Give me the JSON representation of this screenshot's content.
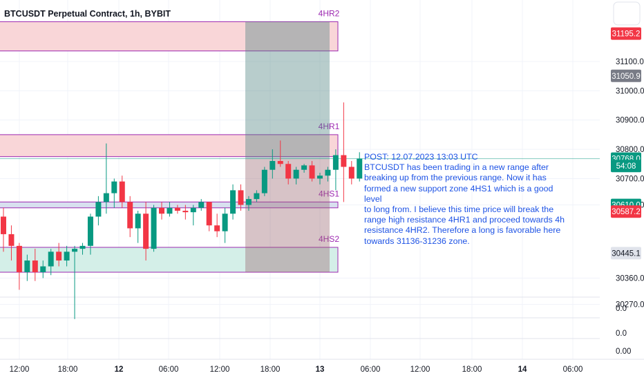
{
  "header": {
    "title": "BTCUSDT Perpetual Contract, 1h, BYBIT"
  },
  "zones": [
    {
      "name": "4HR2",
      "top": 31236,
      "bottom": 31136,
      "fill": "#f9d6d8",
      "stroke": "#9c27b0"
    },
    {
      "name": "4HR1",
      "top": 30850,
      "bottom": 30775,
      "fill": "#f9d6d8",
      "stroke": "#9c27b0"
    },
    {
      "name": "4HS1",
      "top": 30620,
      "bottom": 30600,
      "fill": "#d8e0ef",
      "stroke": "#9c27b0"
    },
    {
      "name": "4HS2",
      "top": 30465,
      "bottom": 30380,
      "fill": "#d4efe8",
      "stroke": "#9c27b0"
    }
  ],
  "position": {
    "entry": 30768,
    "target": 31236,
    "stop": 30380
  },
  "annotation": {
    "lines": [
      "POST: 12.07.2023 13:03 UTC",
      "BTCUSDT has been trading in a new range after",
      "breaking up from the previous range. Now it has",
      "formed a new support zone 4HS1 which is a good level",
      "to long from. I believe this time price will break the",
      "range high resistance 4HR1 and proceed towards 4h",
      "resistance 4HR2. Therefore a long is favorable here",
      "towards 31136-31236 zone."
    ]
  },
  "price_labels": [
    {
      "text": "31195.2",
      "value": 31195.2,
      "bg": "#f23645",
      "fg": "#ffffff"
    },
    {
      "text": "31050.9",
      "value": 31050.9,
      "bg": "#787b86",
      "fg": "#ffffff"
    },
    {
      "text": "30768.0",
      "value": 30768.0,
      "bg": "#089981",
      "fg": "#ffffff"
    },
    {
      "text": "54:08",
      "value": 30743.0,
      "bg": "#089981",
      "fg": "#ffffff"
    },
    {
      "text": "30610.0",
      "value": 30610.0,
      "bg": "#089981",
      "fg": "#ffffff"
    },
    {
      "text": "30587.2",
      "value": 30587.2,
      "bg": "#f23645",
      "fg": "#ffffff"
    },
    {
      "text": "30445.1",
      "value": 30445.1,
      "bg": "#e0e3eb",
      "fg": "#131722"
    }
  ],
  "lower_pane_ticks": [
    "0.0",
    "0.0",
    "0.00"
  ],
  "colors": {
    "up": "#089981",
    "down": "#f23645",
    "axis_text": "#131722",
    "grid": "#f0f3fa"
  },
  "chart_data": {
    "type": "candlestick",
    "title": "BTCUSDT Perpetual Contract, 1h, BYBIT",
    "y_ticks": [
      31100,
      31000,
      30900,
      30800,
      30700,
      30610,
      30360,
      30270
    ],
    "y_tick_labels": [
      "31100.0",
      "31000.0",
      "30900.0",
      "30800.0",
      "30700.0",
      "30610.0",
      "30360.0",
      "30270.0"
    ],
    "ylim": [
      30270,
      31236
    ],
    "x_ticks": [
      "12:00",
      "18:00",
      "12",
      "06:00",
      "12:00",
      "18:00",
      "13",
      "06:00",
      "12:00",
      "18:00",
      "14",
      "06:00"
    ],
    "candles": [
      [
        30570,
        30600,
        30450,
        30510
      ],
      [
        30510,
        30540,
        30420,
        30470
      ],
      [
        30470,
        30480,
        30320,
        30380
      ],
      [
        30380,
        30440,
        30350,
        30420
      ],
      [
        30420,
        30460,
        30350,
        30380
      ],
      [
        30380,
        30420,
        30360,
        30400
      ],
      [
        30400,
        30460,
        30370,
        30450
      ],
      [
        30450,
        30480,
        30400,
        30420
      ],
      [
        30420,
        30470,
        30400,
        30450
      ],
      [
        30450,
        30470,
        30220,
        30460
      ],
      [
        30460,
        30480,
        30440,
        30470
      ],
      [
        30470,
        30580,
        30440,
        30570
      ],
      [
        30570,
        30640,
        30540,
        30620
      ],
      [
        30620,
        30820,
        30580,
        30650
      ],
      [
        30650,
        30700,
        30600,
        30690
      ],
      [
        30690,
        30710,
        30600,
        30620
      ],
      [
        30620,
        30640,
        30500,
        30530
      ],
      [
        30530,
        30590,
        30480,
        30580
      ],
      [
        30580,
        30620,
        30420,
        30460
      ],
      [
        30460,
        30610,
        30450,
        30600
      ],
      [
        30600,
        30620,
        30560,
        30580
      ],
      [
        30580,
        30620,
        30570,
        30600
      ],
      [
        30600,
        30610,
        30580,
        30590
      ],
      [
        30590,
        30610,
        30560,
        30585
      ],
      [
        30585,
        30610,
        30540,
        30600
      ],
      [
        30600,
        30630,
        30590,
        30620
      ],
      [
        30620,
        30620,
        30520,
        30540
      ],
      [
        30540,
        30580,
        30500,
        30520
      ],
      [
        30520,
        30600,
        30480,
        30580
      ],
      [
        30580,
        30680,
        30560,
        30660
      ],
      [
        30660,
        30680,
        30590,
        30610
      ],
      [
        30610,
        30640,
        30590,
        30630
      ],
      [
        30630,
        30660,
        30620,
        30650
      ],
      [
        30650,
        30740,
        30640,
        30730
      ],
      [
        30730,
        30800,
        30700,
        30760
      ],
      [
        30760,
        30830,
        30740,
        30750
      ],
      [
        30750,
        30760,
        30680,
        30700
      ],
      [
        30700,
        30740,
        30680,
        30730
      ],
      [
        30730,
        30750,
        30720,
        30745
      ],
      [
        30745,
        30760,
        30690,
        30700
      ],
      [
        30700,
        30720,
        30680,
        30710
      ],
      [
        30710,
        30740,
        30690,
        30730
      ],
      [
        30730,
        30800,
        30660,
        30780
      ],
      [
        30780,
        30960,
        30620,
        30740
      ],
      [
        30740,
        30760,
        30680,
        30700
      ],
      [
        30700,
        30790,
        30690,
        30768
      ]
    ]
  }
}
